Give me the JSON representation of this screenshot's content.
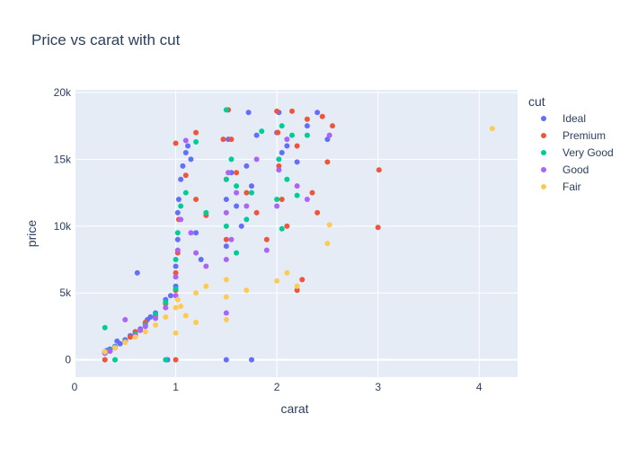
{
  "chart_data": {
    "type": "scatter",
    "title": "Price vs carat with cut",
    "xlabel": "carat",
    "ylabel": "price",
    "xlim": [
      0,
      4.38
    ],
    "ylim": [
      -1300,
      20200
    ],
    "x_ticks": [
      {
        "value": 0,
        "label": "0"
      },
      {
        "value": 1,
        "label": "1"
      },
      {
        "value": 2,
        "label": "2"
      },
      {
        "value": 3,
        "label": "3"
      },
      {
        "value": 4,
        "label": "4"
      }
    ],
    "y_ticks": [
      {
        "value": 0,
        "label": "0"
      },
      {
        "value": 5000,
        "label": "5k"
      },
      {
        "value": 10000,
        "label": "10k"
      },
      {
        "value": 15000,
        "label": "15k"
      },
      {
        "value": 20000,
        "label": "20k"
      }
    ],
    "grid": true,
    "legend": {
      "title": "cut",
      "placement": "right"
    },
    "colors": {
      "plot_bg": "#e5ecf6",
      "grid": "#ffffff",
      "text": "#2a3f5f"
    },
    "series": [
      {
        "name": "Ideal",
        "color": "#636efa",
        "points": [
          [
            0.3,
            600
          ],
          [
            0.32,
            700
          ],
          [
            0.35,
            800
          ],
          [
            0.4,
            1000
          ],
          [
            0.45,
            1200
          ],
          [
            0.5,
            1500
          ],
          [
            0.55,
            1800
          ],
          [
            0.6,
            2000
          ],
          [
            0.65,
            2300
          ],
          [
            0.7,
            2700
          ],
          [
            0.72,
            3000
          ],
          [
            0.75,
            3200
          ],
          [
            0.8,
            3500
          ],
          [
            0.62,
            6500
          ],
          [
            0.9,
            4500
          ],
          [
            0.95,
            4800
          ],
          [
            1.0,
            5500
          ],
          [
            1.0,
            7000
          ],
          [
            1.02,
            9000
          ],
          [
            1.02,
            11000
          ],
          [
            1.03,
            12000
          ],
          [
            1.05,
            13500
          ],
          [
            1.07,
            14500
          ],
          [
            1.1,
            15500
          ],
          [
            1.12,
            16000
          ],
          [
            1.15,
            15000
          ],
          [
            1.2,
            9500
          ],
          [
            1.25,
            7500
          ],
          [
            1.5,
            8500
          ],
          [
            1.5,
            12000
          ],
          [
            1.52,
            16500
          ],
          [
            1.55,
            14000
          ],
          [
            1.6,
            11500
          ],
          [
            1.65,
            10000
          ],
          [
            1.7,
            14500
          ],
          [
            1.72,
            18500
          ],
          [
            1.75,
            13000
          ],
          [
            1.8,
            16800
          ],
          [
            2.0,
            17000
          ],
          [
            2.02,
            18500
          ],
          [
            2.05,
            15500
          ],
          [
            2.1,
            16000
          ],
          [
            2.2,
            14800
          ],
          [
            2.3,
            17500
          ],
          [
            2.4,
            18500
          ],
          [
            2.5,
            16500
          ],
          [
            1.5,
            0
          ],
          [
            1.75,
            0
          ],
          [
            0.92,
            0
          ],
          [
            0.42,
            1400
          ]
        ]
      },
      {
        "name": "Premium",
        "color": "#ef553b",
        "points": [
          [
            0.3,
            500
          ],
          [
            0.35,
            650
          ],
          [
            0.4,
            900
          ],
          [
            0.5,
            1400
          ],
          [
            0.55,
            1700
          ],
          [
            0.6,
            2100
          ],
          [
            0.7,
            2800
          ],
          [
            0.8,
            3300
          ],
          [
            0.9,
            4200
          ],
          [
            1.0,
            5200
          ],
          [
            1.0,
            6500
          ],
          [
            1.02,
            8000
          ],
          [
            1.03,
            10500
          ],
          [
            1.0,
            16200
          ],
          [
            1.1,
            13800
          ],
          [
            1.2,
            12000
          ],
          [
            1.3,
            10800
          ],
          [
            1.5,
            9000
          ],
          [
            1.5,
            13500
          ],
          [
            1.55,
            16500
          ],
          [
            1.6,
            14000
          ],
          [
            1.7,
            12500
          ],
          [
            1.8,
            11000
          ],
          [
            1.9,
            9000
          ],
          [
            2.0,
            18600
          ],
          [
            2.01,
            17000
          ],
          [
            2.02,
            14500
          ],
          [
            2.05,
            12000
          ],
          [
            2.1,
            10000
          ],
          [
            2.2,
            16000
          ],
          [
            2.3,
            18000
          ],
          [
            2.35,
            12500
          ],
          [
            2.4,
            11000
          ],
          [
            2.5,
            14800
          ],
          [
            2.55,
            17500
          ],
          [
            2.25,
            6000
          ],
          [
            2.2,
            5200
          ],
          [
            3.01,
            14200
          ],
          [
            3.0,
            9900
          ],
          [
            1.0,
            0
          ],
          [
            0.3,
            0
          ],
          [
            1.47,
            16500
          ],
          [
            1.52,
            18700
          ],
          [
            1.2,
            17000
          ],
          [
            2.15,
            18600
          ],
          [
            2.45,
            18200
          ]
        ]
      },
      {
        "name": "Very Good",
        "color": "#00cc96",
        "points": [
          [
            0.3,
            550
          ],
          [
            0.35,
            700
          ],
          [
            0.4,
            950
          ],
          [
            0.5,
            1400
          ],
          [
            0.6,
            1900
          ],
          [
            0.7,
            2600
          ],
          [
            0.8,
            3400
          ],
          [
            0.9,
            4300
          ],
          [
            1.0,
            5300
          ],
          [
            1.0,
            7500
          ],
          [
            1.02,
            9500
          ],
          [
            1.05,
            11500
          ],
          [
            1.1,
            12500
          ],
          [
            1.2,
            16300
          ],
          [
            1.3,
            11000
          ],
          [
            1.5,
            18700
          ],
          [
            1.5,
            10000
          ],
          [
            1.55,
            15000
          ],
          [
            1.6,
            13000
          ],
          [
            1.7,
            10500
          ],
          [
            1.85,
            17100
          ],
          [
            2.0,
            12000
          ],
          [
            2.02,
            15000
          ],
          [
            2.05,
            17500
          ],
          [
            2.1,
            13500
          ],
          [
            2.2,
            12300
          ],
          [
            2.3,
            16800
          ],
          [
            2.05,
            9800
          ],
          [
            0.9,
            0
          ],
          [
            0.4,
            0
          ],
          [
            0.3,
            2400
          ],
          [
            1.5,
            13500
          ],
          [
            1.6,
            8000
          ],
          [
            1.75,
            12500
          ],
          [
            2.15,
            16800
          ]
        ]
      },
      {
        "name": "Good",
        "color": "#ab63fa",
        "points": [
          [
            0.3,
            500
          ],
          [
            0.35,
            650
          ],
          [
            0.4,
            900
          ],
          [
            0.5,
            1350
          ],
          [
            0.6,
            1800
          ],
          [
            0.65,
            2200
          ],
          [
            0.7,
            2500
          ],
          [
            0.8,
            3100
          ],
          [
            0.9,
            3900
          ],
          [
            1.0,
            4800
          ],
          [
            1.0,
            6200
          ],
          [
            1.02,
            8200
          ],
          [
            1.05,
            10500
          ],
          [
            1.1,
            16400
          ],
          [
            1.15,
            9500
          ],
          [
            1.2,
            8000
          ],
          [
            1.3,
            7000
          ],
          [
            1.5,
            7500
          ],
          [
            1.5,
            11000
          ],
          [
            1.52,
            14000
          ],
          [
            1.55,
            9000
          ],
          [
            1.6,
            12500
          ],
          [
            1.7,
            11500
          ],
          [
            1.8,
            15000
          ],
          [
            1.9,
            8200
          ],
          [
            2.0,
            11500
          ],
          [
            2.02,
            14200
          ],
          [
            2.1,
            16500
          ],
          [
            2.2,
            13000
          ],
          [
            2.3,
            12000
          ],
          [
            2.52,
            16800
          ],
          [
            1.5,
            3500
          ],
          [
            0.5,
            3000
          ]
        ]
      },
      {
        "name": "Fair",
        "color": "#fecb52",
        "points": [
          [
            0.3,
            600
          ],
          [
            0.4,
            900
          ],
          [
            0.5,
            1300
          ],
          [
            0.6,
            1700
          ],
          [
            0.7,
            2100
          ],
          [
            0.8,
            2600
          ],
          [
            0.9,
            3200
          ],
          [
            1.0,
            3900
          ],
          [
            1.02,
            4500
          ],
          [
            1.05,
            4000
          ],
          [
            1.1,
            3300
          ],
          [
            1.2,
            5000
          ],
          [
            1.3,
            5500
          ],
          [
            1.5,
            4700
          ],
          [
            1.5,
            6000
          ],
          [
            1.7,
            5200
          ],
          [
            2.0,
            5900
          ],
          [
            2.1,
            6500
          ],
          [
            2.2,
            5500
          ],
          [
            2.5,
            8700
          ],
          [
            2.52,
            10100
          ],
          [
            4.13,
            17300
          ],
          [
            1.5,
            3000
          ],
          [
            1.2,
            2800
          ],
          [
            1.0,
            2000
          ]
        ]
      }
    ]
  }
}
